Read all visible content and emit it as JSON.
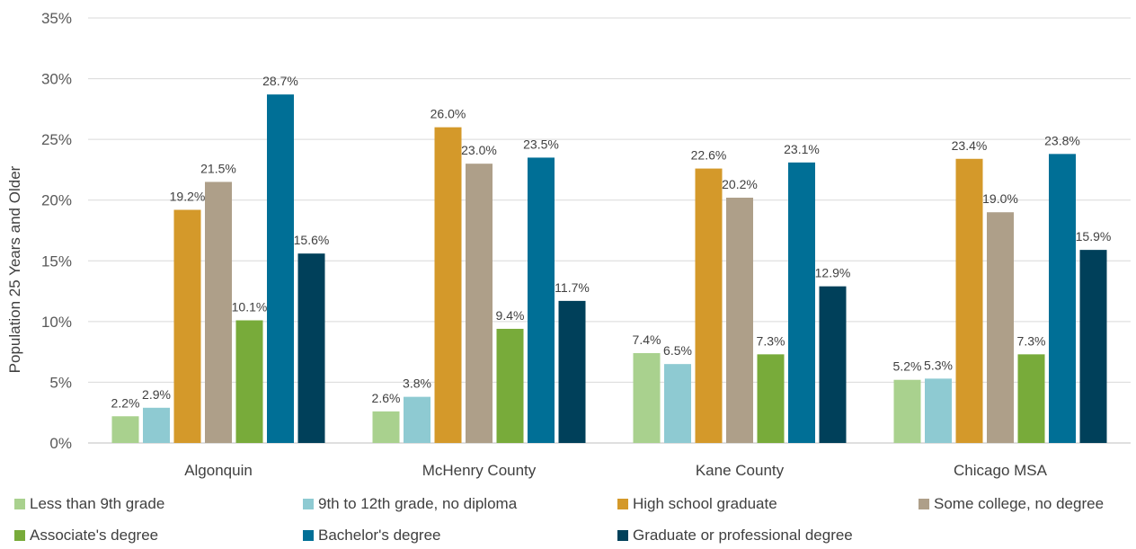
{
  "chart_data": {
    "type": "bar",
    "ylabel": "Population 25 Years and Older",
    "ylim": [
      0,
      35
    ],
    "yticks": [
      "0%",
      "5%",
      "10%",
      "15%",
      "20%",
      "25%",
      "30%",
      "35%"
    ],
    "grid": true,
    "legend_position": "bottom",
    "categories": [
      "Algonquin",
      "McHenry County",
      "Kane County",
      "Chicago MSA"
    ],
    "series": [
      {
        "name": "Less than 9th grade",
        "color": "#a9d18e",
        "values": [
          2.2,
          2.6,
          7.4,
          5.2
        ],
        "labels": [
          "2.2%",
          "2.6%",
          "7.4%",
          "5.2%"
        ]
      },
      {
        "name": "9th to 12th grade, no diploma",
        "color": "#8ecad2",
        "values": [
          2.9,
          3.8,
          6.5,
          5.3
        ],
        "labels": [
          "2.9%",
          "3.8%",
          "6.5%",
          "5.3%"
        ]
      },
      {
        "name": "High school graduate",
        "color": "#d4992a",
        "values": [
          19.2,
          26.0,
          22.6,
          23.4
        ],
        "labels": [
          "19.2%",
          "26.0%",
          "22.6%",
          "23.4%"
        ]
      },
      {
        "name": "Some college, no degree",
        "color": "#ae9f89",
        "values": [
          21.5,
          23.0,
          20.2,
          19.0
        ],
        "labels": [
          "21.5%",
          "23.0%",
          "20.2%",
          "19.0%"
        ]
      },
      {
        "name": "Associate's degree",
        "color": "#78ab3a",
        "values": [
          10.1,
          9.4,
          7.3,
          7.3
        ],
        "labels": [
          "10.1%",
          "9.4%",
          "7.3%",
          "7.3%"
        ]
      },
      {
        "name": "Bachelor's degree",
        "color": "#006f96",
        "values": [
          28.7,
          23.5,
          23.1,
          23.8
        ],
        "labels": [
          "28.7%",
          "23.5%",
          "23.1%",
          "23.8%"
        ]
      },
      {
        "name": "Graduate or professional degree",
        "color": "#00405a",
        "values": [
          15.6,
          11.7,
          12.9,
          15.9
        ],
        "labels": [
          "15.6%",
          "11.7%",
          "12.9%",
          "15.9%"
        ]
      }
    ]
  }
}
